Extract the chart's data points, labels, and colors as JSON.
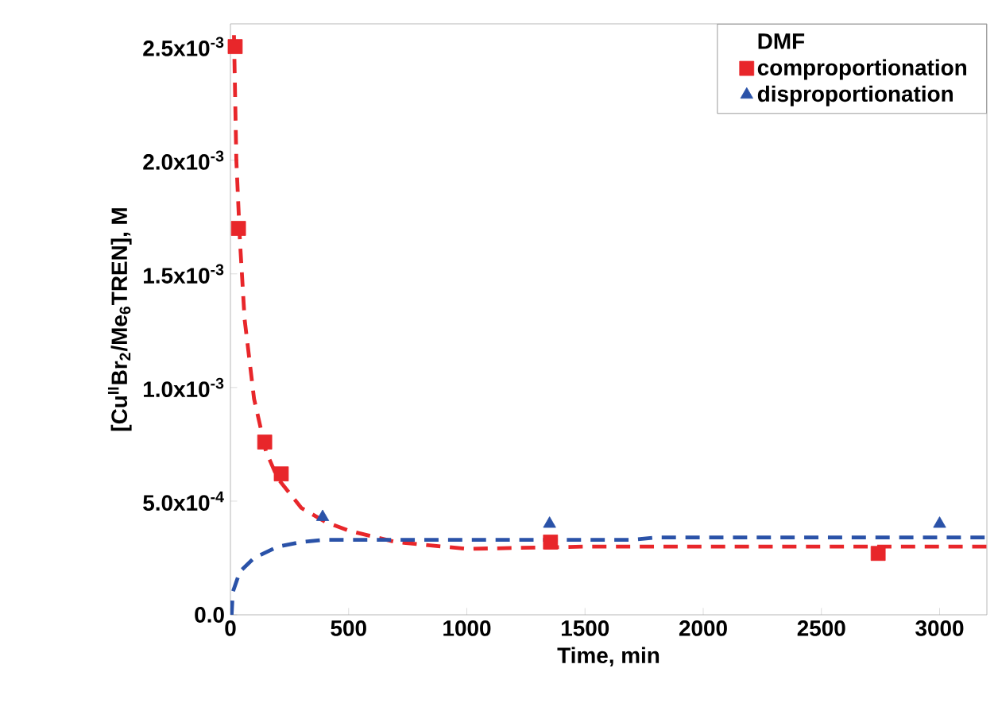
{
  "chart_data": {
    "type": "scatter",
    "xlabel": "Time, min",
    "ylabel": "[Cu$^{II}$Br$_{2}$/Me$_{6}$TREN], M",
    "legend_title": "DMF",
    "legend": "top right",
    "xlim": [
      0,
      3200
    ],
    "ylim": [
      0,
      0.0026
    ],
    "xticks": [
      0,
      500,
      1000,
      1500,
      2000,
      2500,
      3000
    ],
    "yticks": [
      {
        "value": 0,
        "label": "0.0"
      },
      {
        "value": 0.0005,
        "label": "5.0x10$^{-4}$"
      },
      {
        "value": 0.001,
        "label": "1.0x10$^{-3}$"
      },
      {
        "value": 0.0015,
        "label": "1.5x10$^{-3}$"
      },
      {
        "value": 0.002,
        "label": "2.0x10$^{-3}$"
      },
      {
        "value": 0.0025,
        "label": "2.5x10$^{-3}$"
      }
    ],
    "series": [
      {
        "type": "line",
        "line_style": "dashed",
        "color": "#e8262a",
        "x": [
          15,
          25,
          40,
          60,
          100,
          150,
          200,
          300,
          400,
          500,
          700,
          1000,
          1500,
          2000,
          3200
        ],
        "values": [
          0.00255,
          0.002,
          0.00165,
          0.0013,
          0.00095,
          0.00072,
          0.0006,
          0.00047,
          0.00041,
          0.00037,
          0.00032,
          0.00029,
          0.0003,
          0.0003,
          0.0003
        ]
      },
      {
        "type": "line",
        "line_style": "dashed",
        "color": "#2a52a8",
        "x": [
          5,
          10,
          40,
          100,
          200,
          300,
          400,
          1000,
          1700,
          1800,
          3200
        ],
        "values": [
          0,
          0.0001,
          0.00019,
          0.00025,
          0.0003,
          0.00032,
          0.00033,
          0.00033,
          0.00033,
          0.00034,
          0.00034
        ]
      },
      {
        "name": "comproportionation",
        "marker": "square",
        "color": "#e8262a",
        "x": [
          20,
          34,
          145,
          215,
          1354,
          2740
        ],
        "values": [
          0.0025,
          0.0017,
          0.00076,
          0.00062,
          0.00032,
          0.00027
        ]
      },
      {
        "name": "disproportionation",
        "marker": "triangle",
        "color": "#2a52a8",
        "x": [
          390,
          1350,
          3000
        ],
        "values": [
          0.00043,
          0.0004,
          0.0004
        ]
      }
    ]
  }
}
